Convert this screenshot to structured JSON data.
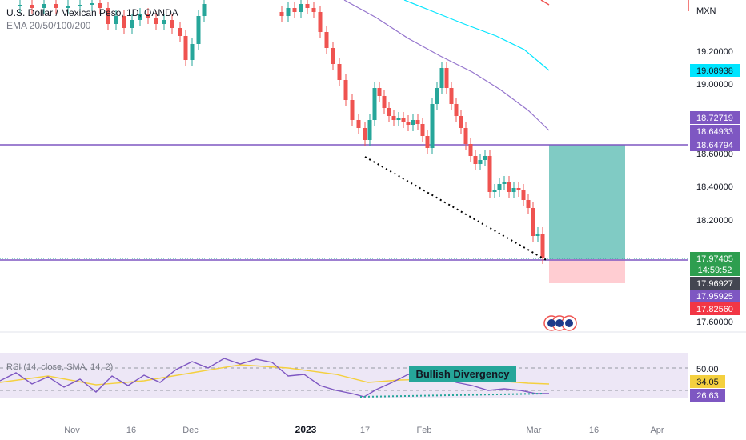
{
  "header": {
    "symbol_title": "U.S. Dollar / Mexican Peso, 1D, OANDA",
    "indicator": "EMA 20/50/100/200",
    "currency": "MXN"
  },
  "price_axis": {
    "ticks": [
      "19.20000",
      "19.00000",
      "18.60000",
      "18.40000",
      "18.20000",
      "17.60000"
    ],
    "badges": {
      "ema_cyan": "19.08938",
      "ema_purple": "18.72719",
      "ema_purple2": "18.64933",
      "resistance": "18.64794",
      "current": "17.97405",
      "countdown": "14:59:52",
      "bid": "17.96927",
      "ema_low": "17.95925",
      "stop": "17.82560"
    }
  },
  "rsi": {
    "label": "RSI (14, close, SMA, 14, 2)",
    "level_50": "50.00",
    "value_signal": "34.05",
    "value_rsi": "26.63",
    "annotation": "Bullish Divergency"
  },
  "time_axis": {
    "labels": [
      "Nov",
      "16",
      "Dec",
      "2023",
      "17",
      "Feb",
      "Mar",
      "16",
      "Apr"
    ]
  },
  "colors": {
    "up": "#26a69a",
    "down": "#ef5350",
    "ema_cyan": "#00e5ff",
    "ema_purple": "#7e57c2",
    "ema_red": "#ef5350",
    "target_zone": "#80cbc4",
    "stop_zone": "#ffcdd2",
    "rsi_bg": "#ede7f6",
    "rsi_line": "#7e57c2",
    "rsi_signal": "#f4d03f",
    "badge_green": "#2e9e4f",
    "badge_purple": "#7e57c2",
    "badge_cyan": "#00e5ff",
    "badge_red": "#f23645",
    "badge_dark": "#434651",
    "annotation_bg": "#26a69a"
  },
  "chart_data": {
    "type": "candlestick",
    "x": [
      "Nov",
      "16",
      "Dec",
      "2023",
      "17",
      "Feb",
      "Mar",
      "16",
      "Apr"
    ],
    "current_price": 17.97405,
    "resistance_level": 18.64794,
    "target": 18.64794,
    "stop": 17.8256,
    "ema_visible_levels": [
      19.08938,
      18.72719,
      18.64933,
      17.95925
    ],
    "rsi_current": 26.63,
    "rsi_signal": 34.05,
    "ylim": [
      17.5,
      19.3
    ]
  }
}
